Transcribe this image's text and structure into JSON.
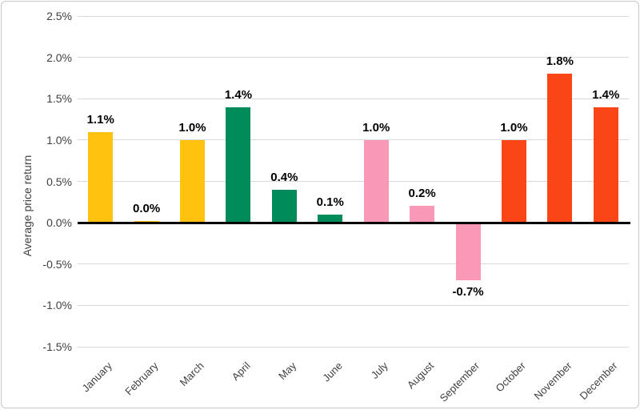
{
  "frame": {
    "background": "#ffffff",
    "border_color": "#c8c8c8"
  },
  "chart_data": {
    "type": "bar",
    "categories": [
      "January",
      "February",
      "March",
      "April",
      "May",
      "June",
      "July",
      "August",
      "September",
      "October",
      "November",
      "December"
    ],
    "values": [
      1.1,
      0.0,
      1.0,
      1.4,
      0.4,
      0.1,
      1.0,
      0.2,
      -0.7,
      1.0,
      1.8,
      1.4
    ],
    "data_labels": [
      "1.1%",
      "0.0%",
      "1.0%",
      "1.4%",
      "0.4%",
      "0.1%",
      "1.0%",
      "0.2%",
      "-0.7%",
      "1.0%",
      "1.8%",
      "1.4%"
    ],
    "bar_colors": [
      "#FFC20E",
      "#FFC20E",
      "#FFC20E",
      "#008C5A",
      "#008C5A",
      "#008C5A",
      "#F999B7",
      "#F999B7",
      "#F999B7",
      "#FA4616",
      "#FA4616",
      "#FA4616"
    ],
    "color_legend": {
      "yellow": "#FFC20E",
      "green": "#008C5A",
      "pink": "#F999B7",
      "orange": "#FA4616"
    },
    "title": "",
    "xlabel": "",
    "ylabel": "Average price return",
    "ylim": [
      -1.5,
      2.5
    ],
    "ytick_step": 0.5,
    "ytick_labels": [
      "2.5%",
      "2.0%",
      "1.5%",
      "1.0%",
      "0.5%",
      "0.0%",
      "-0.5%",
      "-1.0%",
      "-1.5%"
    ],
    "grid": true,
    "legend": "none",
    "gridline_color": "#d9d9d9",
    "axis_line_color": "#000000",
    "tick_label_color": "#404040",
    "data_label_color": "#000000"
  }
}
